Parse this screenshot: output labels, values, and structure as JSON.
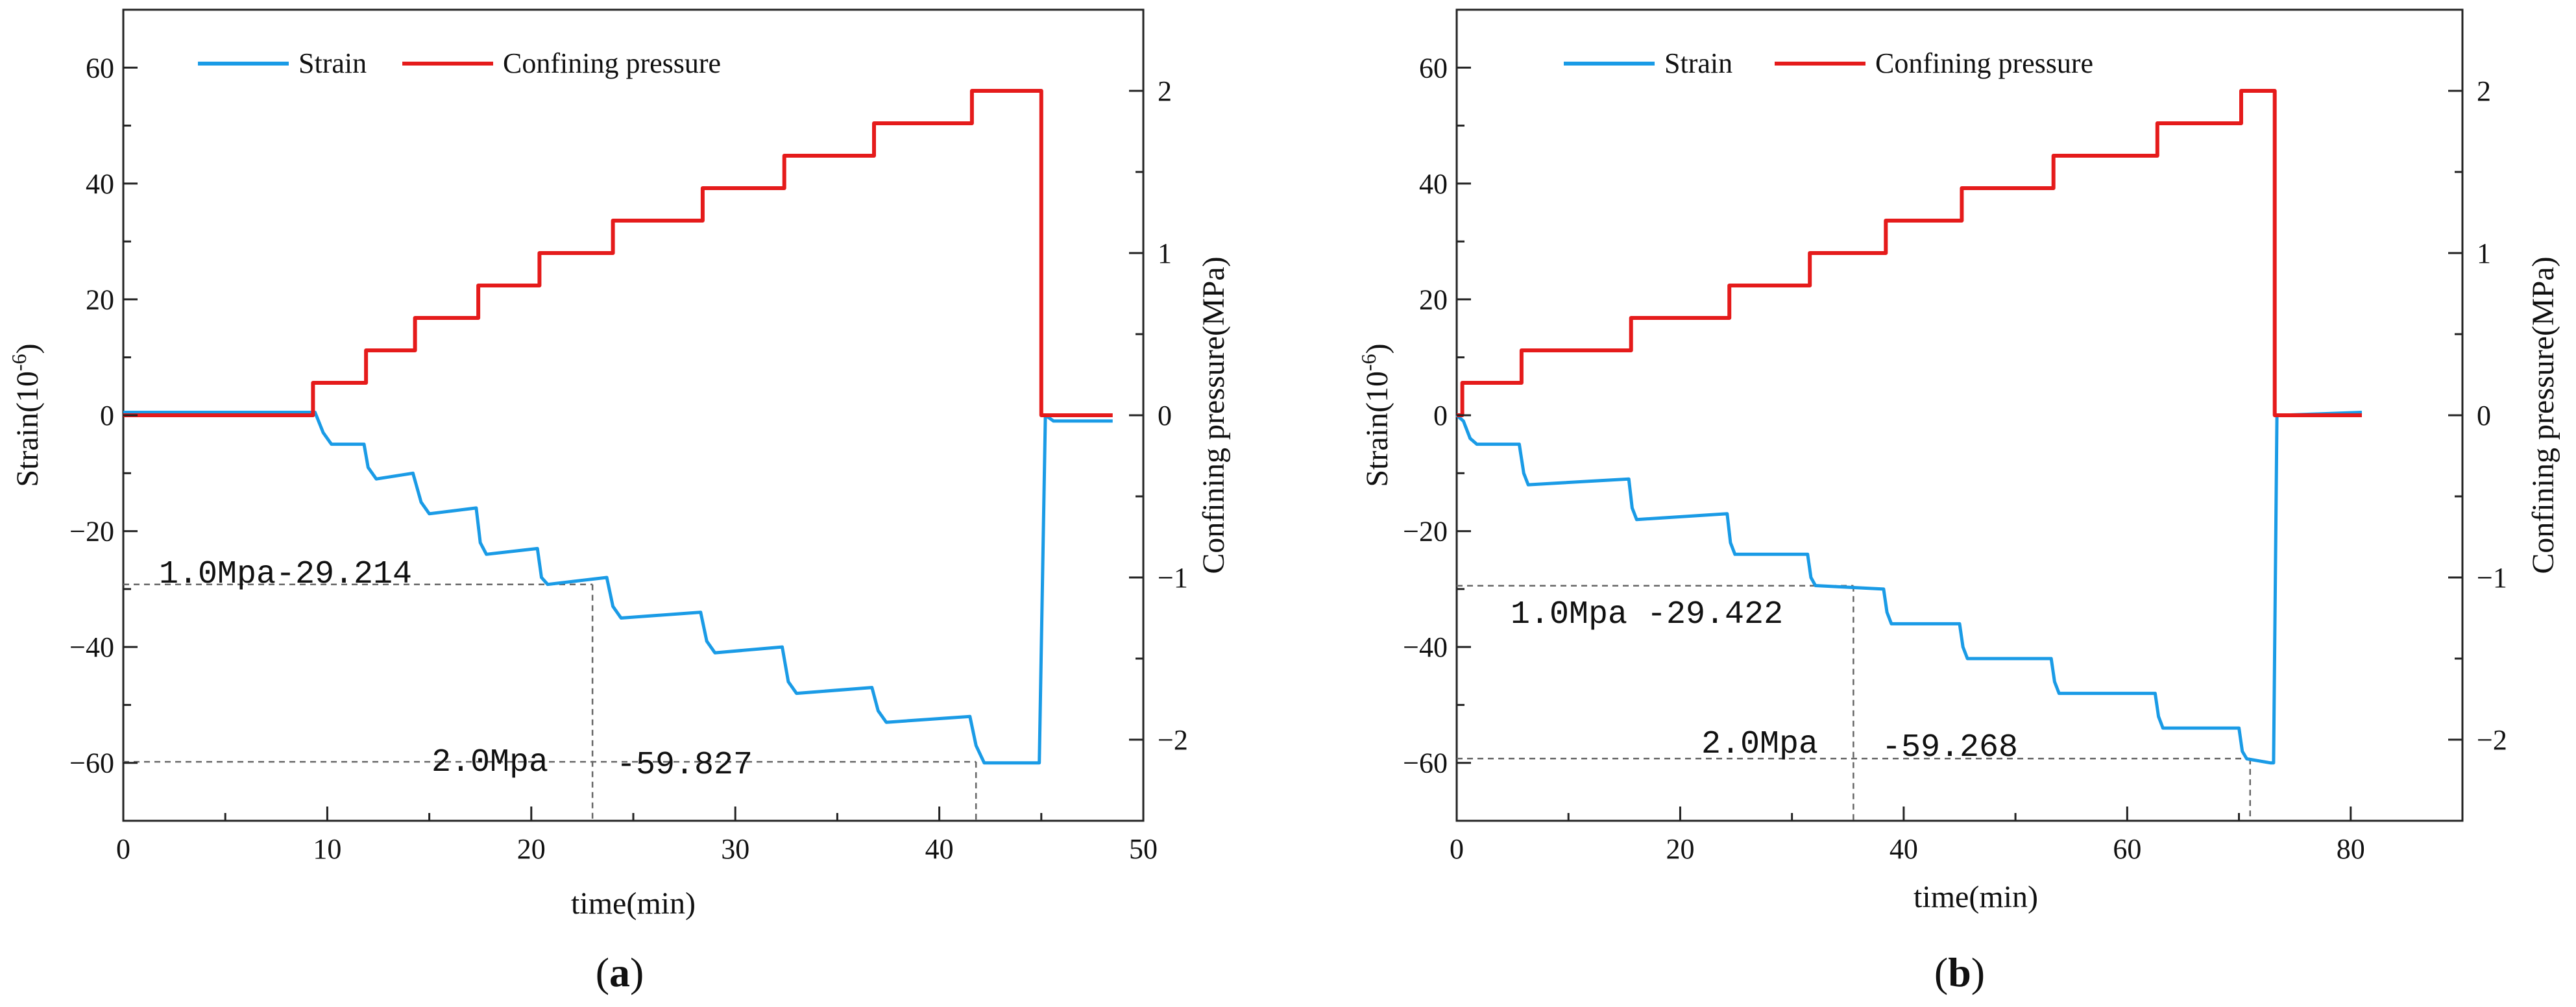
{
  "chart_data": [
    {
      "type": "line",
      "panel": "a",
      "panel_label": "(a)",
      "panel_letter": "a",
      "xlabel": "time(min)",
      "ylabel_left": "Strain(10-6)",
      "ylabel_left_base": "Strain(10",
      "ylabel_left_exp": "-6",
      "ylabel_left_close": ")",
      "ylabel_right": "Confining pressure(MPa)",
      "xlim": [
        0,
        50
      ],
      "ylim_left": [
        -70,
        70
      ],
      "ylim_right": [
        -2.5,
        2.5
      ],
      "xticks": [
        0,
        10,
        20,
        30,
        40,
        50
      ],
      "yticks_left": [
        -60,
        -40,
        -20,
        0,
        20,
        40,
        60
      ],
      "yticks_right": [
        -2,
        -1,
        0,
        1,
        2
      ],
      "legend": {
        "position": "top-left",
        "entries": [
          "Strain",
          "Confining pressure"
        ]
      },
      "series": [
        {
          "name": "Strain",
          "color": "#1a9be6",
          "x": [
            0,
            9.4,
            9.8,
            10.2,
            11.8,
            12.0,
            12.4,
            14.2,
            14.6,
            15.0,
            17.3,
            17.5,
            17.8,
            20.3,
            20.5,
            20.8,
            23.7,
            24.0,
            24.4,
            28.3,
            28.6,
            29.0,
            32.3,
            32.6,
            33.0,
            36.7,
            37.0,
            37.4,
            41.5,
            41.8,
            42.2,
            44.6,
            44.9,
            45.2,
            45.6,
            48.5
          ],
          "y": [
            0.5,
            0.5,
            -3,
            -5,
            -5,
            -9,
            -11,
            -10,
            -15,
            -17,
            -16,
            -22,
            -24,
            -23,
            -28,
            -29.2,
            -28,
            -33,
            -35,
            -34,
            -39,
            -41,
            -40,
            -46,
            -48,
            -47,
            -51,
            -53,
            -52,
            -57,
            -60,
            -60,
            -60,
            0,
            -1,
            -1
          ]
        },
        {
          "name": "Confining pressure",
          "color": "#e51b1b",
          "x": [
            0,
            9.3,
            9.3,
            11.9,
            11.9,
            14.3,
            14.3,
            17.4,
            17.4,
            20.4,
            20.4,
            24.0,
            24.0,
            28.4,
            28.4,
            32.4,
            32.4,
            36.8,
            36.8,
            41.6,
            41.6,
            45.0,
            45.0,
            48.5
          ],
          "y": [
            0,
            0,
            0.2,
            0.2,
            0.4,
            0.4,
            0.6,
            0.6,
            0.8,
            0.8,
            1.0,
            1.0,
            1.2,
            1.2,
            1.4,
            1.4,
            1.6,
            1.6,
            1.8,
            1.8,
            2.0,
            2.0,
            0,
            0
          ]
        }
      ],
      "annotations": [
        {
          "label": "1.0Mpa-29.214",
          "x": 23.0,
          "y": -29.2
        },
        {
          "label": "2.0Mpa",
          "x": 41.8,
          "y": -59.827
        },
        {
          "label": "-59.827",
          "x": 41.8,
          "y": -59.827
        }
      ],
      "ref_lines": [
        {
          "x": 23.0,
          "y": -29.2
        },
        {
          "x": 41.8,
          "y": -59.827
        }
      ]
    },
    {
      "type": "line",
      "panel": "b",
      "panel_label": "(b)",
      "panel_letter": "b",
      "xlabel": "time(min)",
      "ylabel_left": "Strain(10-6)",
      "ylabel_left_base": "Strain(10",
      "ylabel_left_exp": "-6",
      "ylabel_left_close": ")",
      "ylabel_right": "Confining pressure(MPa)",
      "xlim": [
        0,
        90
      ],
      "ylim_left": [
        -70,
        70
      ],
      "ylim_right": [
        -2.5,
        2.5
      ],
      "xticks": [
        0,
        20,
        40,
        60,
        80
      ],
      "yticks_left": [
        -60,
        -40,
        -20,
        0,
        20,
        40,
        60
      ],
      "yticks_right": [
        -2,
        -1,
        0,
        1,
        2
      ],
      "legend": {
        "position": "top-left",
        "entries": [
          "Strain",
          "Confining pressure"
        ]
      },
      "series": [
        {
          "name": "Strain",
          "color": "#1a9be6",
          "x": [
            0,
            0.6,
            1.2,
            1.8,
            5.6,
            6.0,
            6.4,
            15.4,
            15.7,
            16.1,
            24.2,
            24.5,
            24.9,
            31.4,
            31.7,
            32.1,
            38.2,
            38.5,
            38.9,
            45.0,
            45.3,
            45.7,
            53.2,
            53.5,
            53.9,
            62.5,
            62.8,
            63.2,
            70.0,
            70.3,
            70.7,
            72.8,
            73.1,
            73.4,
            73.8,
            81.0
          ],
          "y": [
            0,
            -1,
            -4,
            -5,
            -5,
            -10,
            -12,
            -11,
            -16,
            -18,
            -17,
            -22,
            -24,
            -24,
            -28,
            -29.4,
            -30,
            -34,
            -36,
            -36,
            -40,
            -42,
            -42,
            -46,
            -48,
            -48,
            -52,
            -54,
            -54,
            -58,
            -59.3,
            -60,
            -60,
            0,
            0,
            0.5
          ]
        },
        {
          "name": "Confining pressure",
          "color": "#e51b1b",
          "x": [
            0,
            0.5,
            0.5,
            5.8,
            5.8,
            15.6,
            15.6,
            24.4,
            24.4,
            31.6,
            31.6,
            38.4,
            38.4,
            45.2,
            45.2,
            53.4,
            53.4,
            62.7,
            62.7,
            70.2,
            70.2,
            73.2,
            73.2,
            81.0
          ],
          "y": [
            0,
            0,
            0.2,
            0.2,
            0.4,
            0.4,
            0.6,
            0.6,
            0.8,
            0.8,
            1.0,
            1.0,
            1.2,
            1.2,
            1.4,
            1.4,
            1.6,
            1.6,
            1.8,
            1.8,
            2.0,
            2.0,
            0,
            0
          ]
        }
      ],
      "annotations": [
        {
          "label": "1.0Mpa -29.422",
          "x": 35.5,
          "y": -29.422
        },
        {
          "label": "2.0Mpa",
          "x": 71.0,
          "y": -59.268
        },
        {
          "label": "-59.268",
          "x": 71.0,
          "y": -59.268
        }
      ],
      "ref_lines": [
        {
          "x": 35.5,
          "y": -29.422
        },
        {
          "x": 71.0,
          "y": -59.268
        }
      ]
    }
  ]
}
